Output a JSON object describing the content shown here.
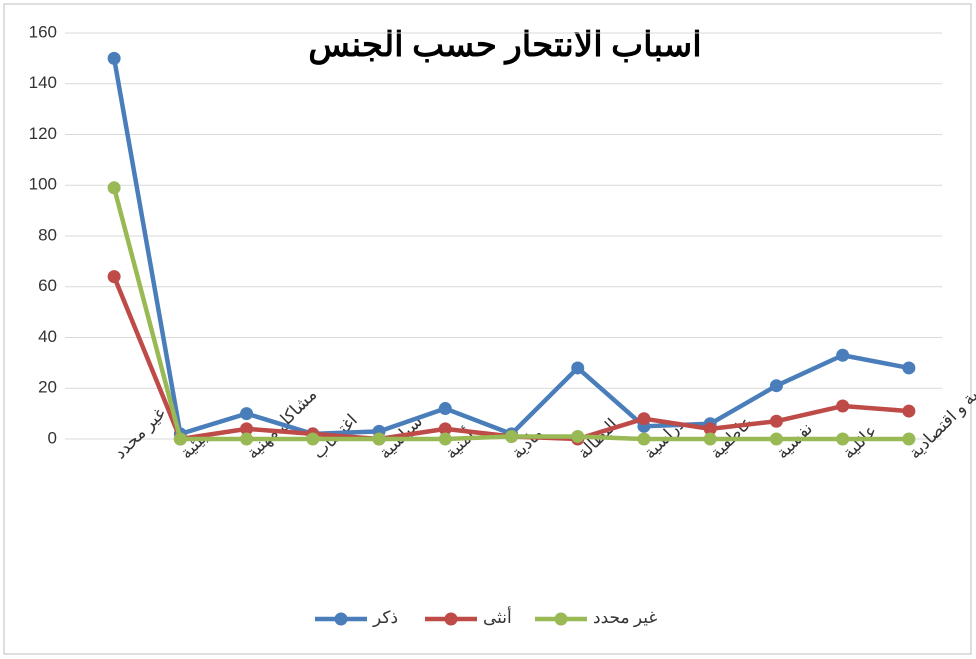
{
  "chart_data": {
    "type": "line",
    "title": "اسباب الانتحار حسب  الجنس",
    "categories": [
      "غير محدد",
      "بيئية",
      "مشاكل مهنية",
      "اغتصاب",
      "سياسية",
      "أمنية",
      "مادية",
      "البطالة",
      "دراسية",
      "عاطفية",
      "نفسية",
      "عائلية",
      "اجتماعية و اقتصادية"
    ],
    "series": [
      {
        "name": "ذكر",
        "color": "#4a7ebb",
        "values": [
          150,
          2,
          10,
          2,
          3,
          12,
          2,
          28,
          5,
          6,
          21,
          33,
          28
        ]
      },
      {
        "name": "أنثى",
        "color": "#be4b48",
        "values": [
          64,
          0,
          4,
          2,
          0,
          4,
          1,
          0,
          8,
          4,
          7,
          13,
          11
        ]
      },
      {
        "name": "غير محدد",
        "color": "#98b954",
        "values": [
          99,
          0,
          0,
          0,
          0,
          0,
          1,
          1,
          0,
          0,
          0,
          0,
          0
        ]
      }
    ],
    "ylim": [
      0,
      160
    ],
    "yticks": [
      0,
      20,
      40,
      60,
      80,
      100,
      120,
      140,
      160
    ],
    "grid": true,
    "legend": "bottom"
  }
}
